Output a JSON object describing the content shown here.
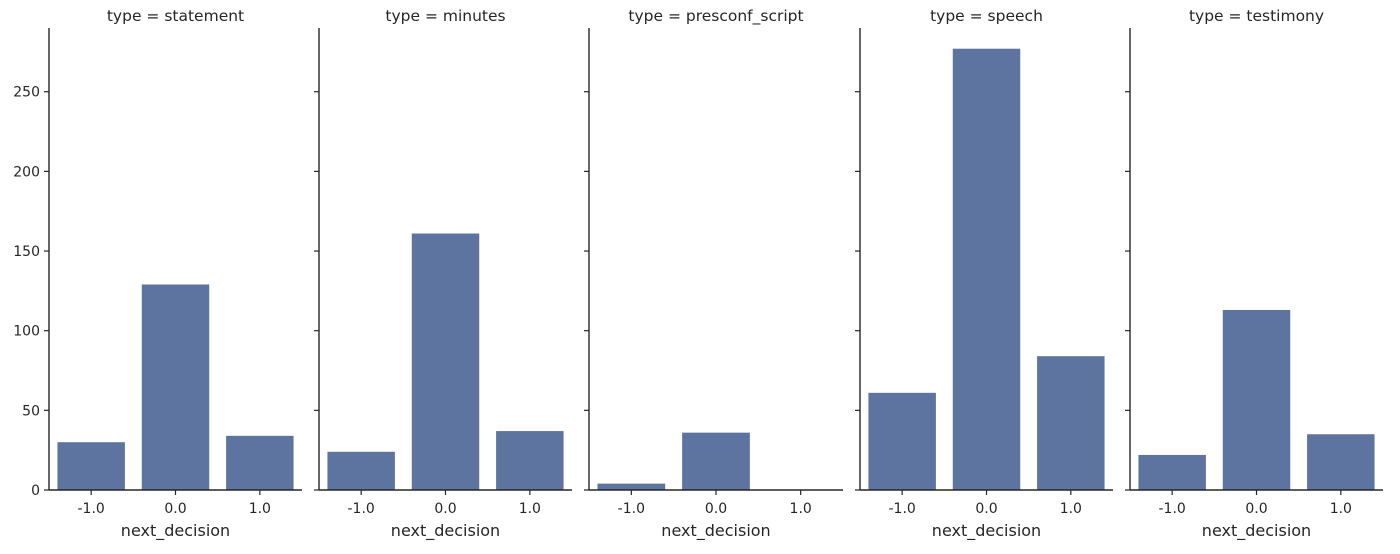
{
  "chart_data": {
    "type": "bar",
    "layout": "faceted",
    "shared_y_axis": true,
    "xlabel": "next_decision",
    "ylabel": "",
    "ylim": [
      0,
      290
    ],
    "yticks": [
      0,
      50,
      100,
      150,
      200,
      250
    ],
    "categories": [
      "-1.0",
      "0.0",
      "1.0"
    ],
    "bar_color": "#5e74a0",
    "grid": false,
    "legend": "none",
    "facets": [
      {
        "title": "type = statement",
        "values": [
          30,
          129,
          34
        ]
      },
      {
        "title": "type = minutes",
        "values": [
          24,
          161,
          37
        ]
      },
      {
        "title": "type = presconf_script",
        "values": [
          4,
          36,
          0
        ]
      },
      {
        "title": "type = speech",
        "values": [
          61,
          277,
          84
        ]
      },
      {
        "title": "type = testimony",
        "values": [
          22,
          113,
          35
        ]
      }
    ]
  }
}
